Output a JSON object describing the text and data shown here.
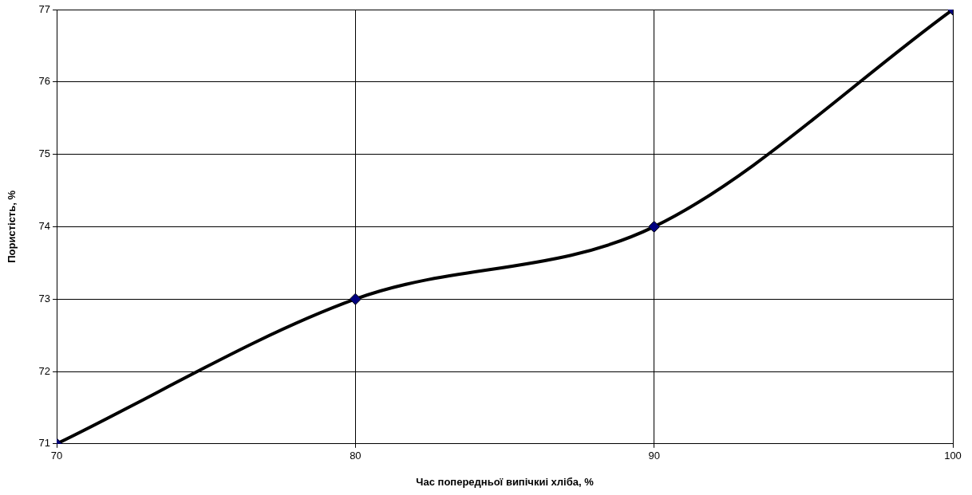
{
  "chart_data": {
    "type": "line",
    "xlabel": "Час попередньої випічкиі хліба, %",
    "ylabel": "Пористість, %",
    "x": [
      70,
      80,
      90,
      100
    ],
    "series": [
      {
        "color": "#000000",
        "values": [
          71,
          73,
          74,
          77
        ]
      }
    ],
    "xlim": [
      70,
      100
    ],
    "xticks": [
      70,
      80,
      90,
      100
    ],
    "ylim": [
      71,
      77
    ],
    "yticks": [
      71,
      72,
      73,
      74,
      75,
      76,
      77
    ],
    "grid": true,
    "legend": false,
    "marker": "diamond",
    "line_style": "solid"
  }
}
